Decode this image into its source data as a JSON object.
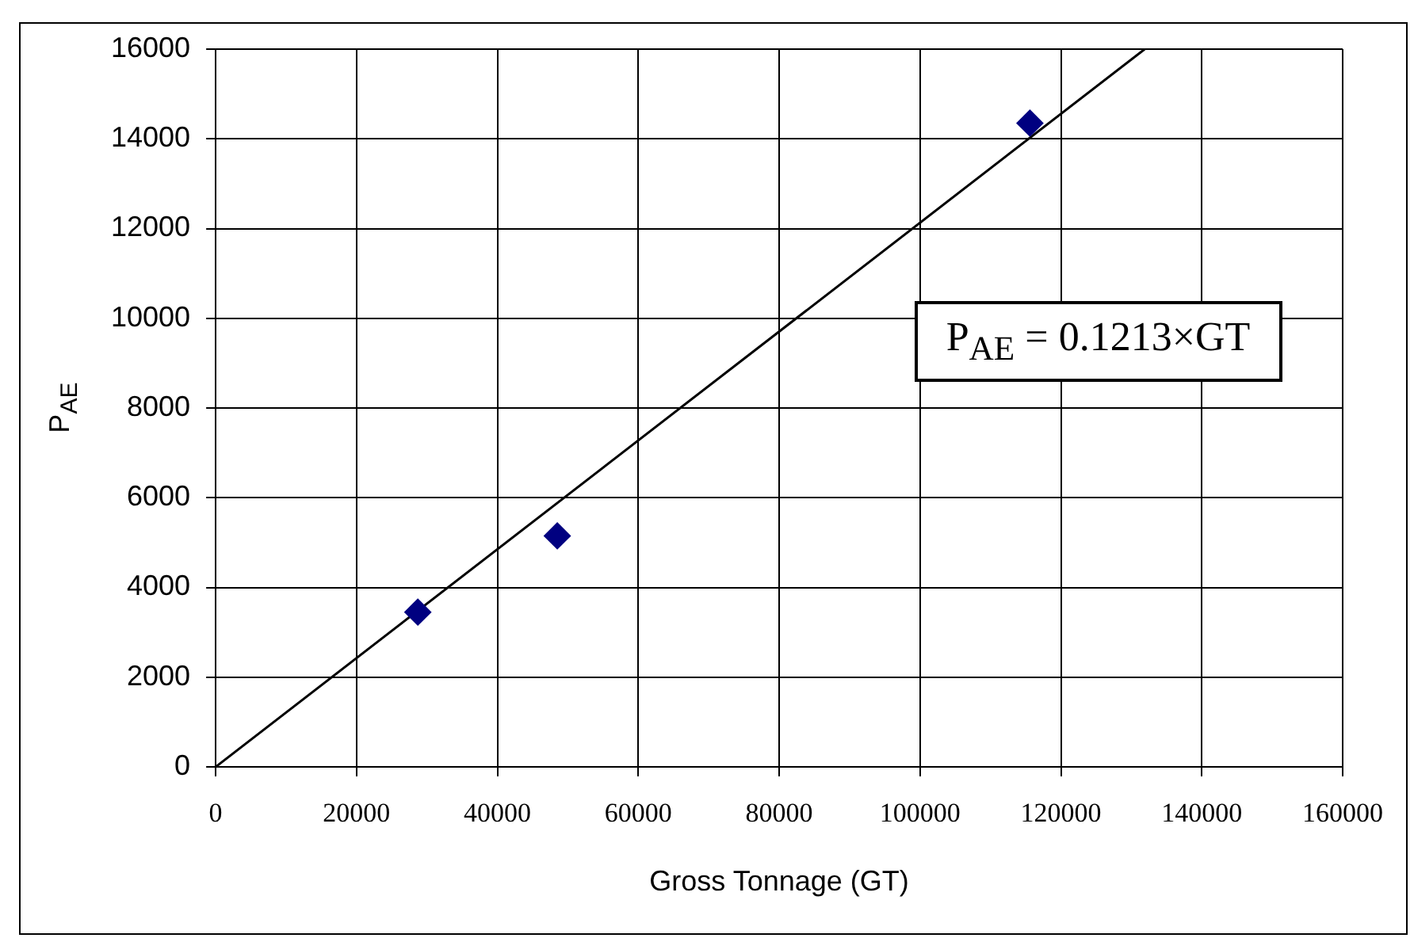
{
  "chart_data": {
    "type": "scatter",
    "xlabel": "Gross Tonnage (GT)",
    "ylabel": "P$_{AE}$",
    "xlim": [
      0,
      160000
    ],
    "xticks": [
      0,
      20000,
      40000,
      60000,
      80000,
      100000,
      120000,
      140000,
      160000
    ],
    "ylim": [
      0,
      16000
    ],
    "yticks": [
      0,
      2000,
      4000,
      6000,
      8000,
      10000,
      12000,
      14000,
      16000
    ],
    "grid": true,
    "legend": false,
    "marker": "diamond",
    "series": [
      {
        "color": "#000080",
        "x": [
          28700,
          48500,
          115600
        ],
        "values": [
          3450,
          5150,
          14350
        ]
      },
      {
        "type": "line",
        "color": "#000000",
        "marker": "none",
        "line_style": "solid",
        "x": [
          0,
          131900
        ],
        "values": [
          0,
          16000
        ]
      }
    ],
    "annotations": [
      "P$_{AE}$ = 0.1213×GT"
    ]
  }
}
